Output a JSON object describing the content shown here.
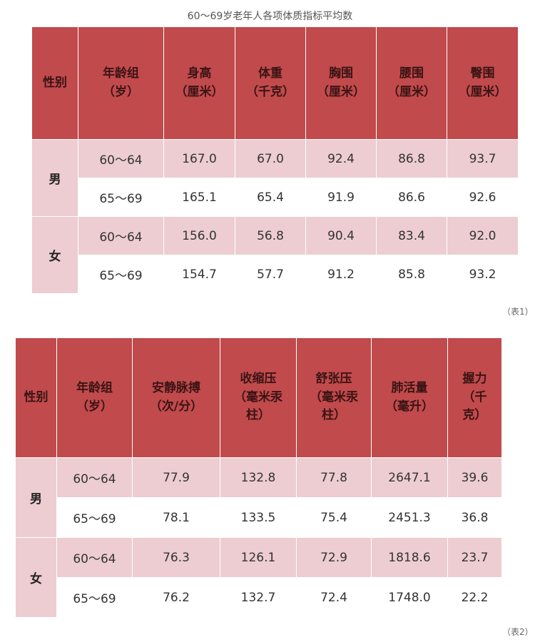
{
  "title": "60～69岁老年人各项体质指标平均数",
  "table1": {
    "caption": "（表1）",
    "sex_header": "性别",
    "headers": [
      "年龄组\n（岁）",
      "身高\n（厘米）",
      "体重\n（千克）",
      "胸围\n（厘米）",
      "腰围\n（厘米）",
      "臀围\n（厘米）"
    ],
    "groups": [
      {
        "sex": "男",
        "rows": [
          [
            "60～64",
            "167.0",
            "67.0",
            "92.4",
            "86.8",
            "93.7"
          ],
          [
            "65～69",
            "165.1",
            "65.4",
            "91.9",
            "86.6",
            "92.6"
          ]
        ]
      },
      {
        "sex": "女",
        "rows": [
          [
            "60～64",
            "156.0",
            "56.8",
            "90.4",
            "83.4",
            "92.0"
          ],
          [
            "65～69",
            "154.7",
            "57.7",
            "91.2",
            "85.8",
            "93.2"
          ]
        ]
      }
    ]
  },
  "table2": {
    "caption": "（表2）",
    "sex_header": "性别",
    "headers": [
      "年龄组\n（岁）",
      "安静脉搏\n（次/分）",
      "收缩压\n（毫米汞\n柱）",
      "舒张压\n（毫米汞\n柱）",
      "肺活量\n（毫升）",
      "握力\n（千\n克）"
    ],
    "groups": [
      {
        "sex": "男",
        "rows": [
          [
            "60～64",
            "77.9",
            "132.8",
            "77.8",
            "2647.1",
            "39.6"
          ],
          [
            "65～69",
            "78.1",
            "133.5",
            "75.4",
            "2451.3",
            "36.8"
          ]
        ]
      },
      {
        "sex": "女",
        "rows": [
          [
            "60～64",
            "76.3",
            "126.1",
            "72.9",
            "1818.6",
            "23.7"
          ],
          [
            "65～69",
            "76.2",
            "132.7",
            "72.4",
            "1748.0",
            "22.2"
          ]
        ]
      }
    ]
  }
}
